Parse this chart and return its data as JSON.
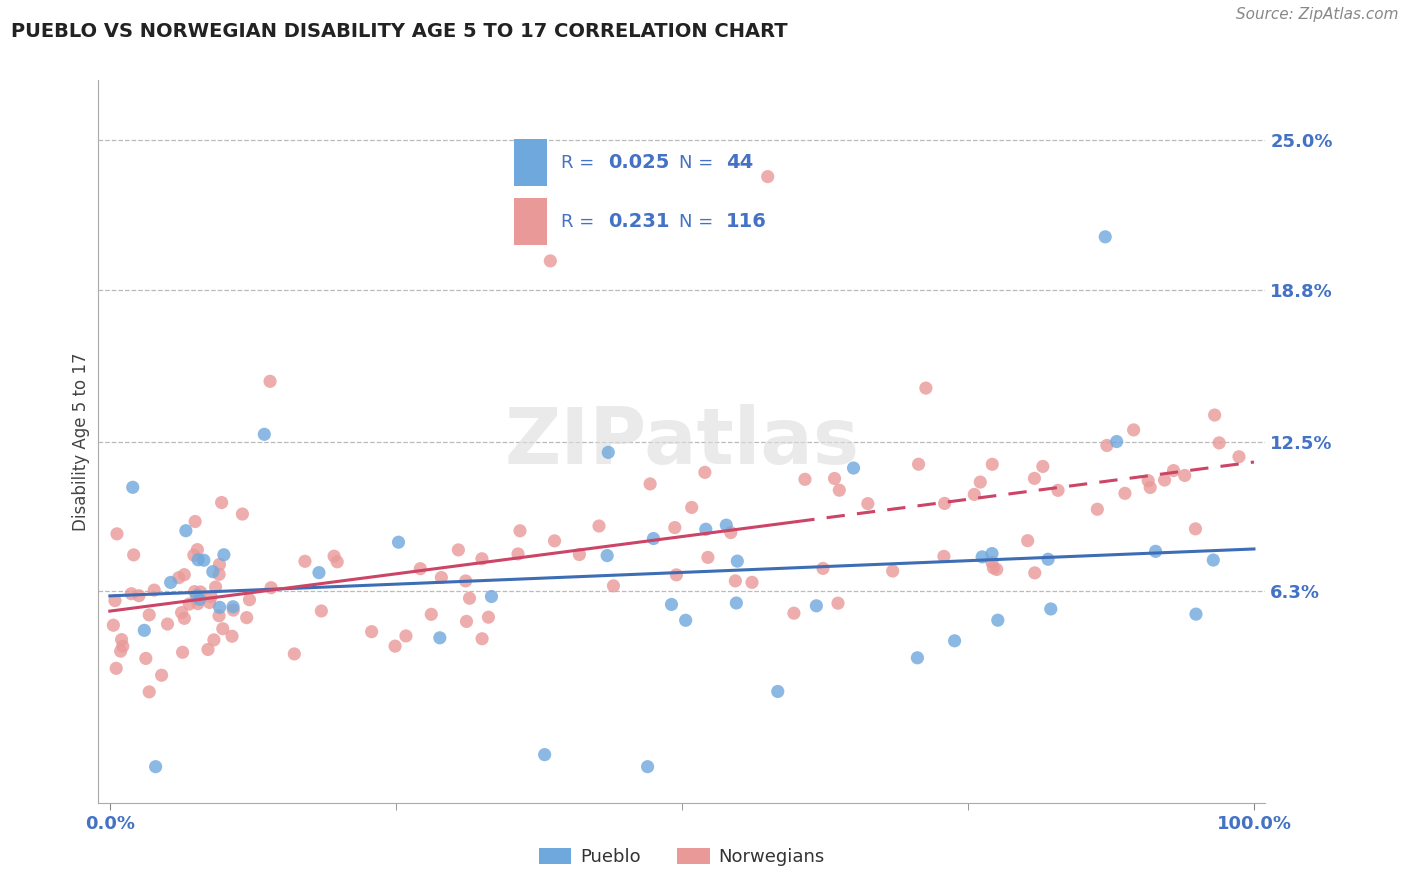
{
  "title": "PUEBLO VS NORWEGIAN DISABILITY AGE 5 TO 17 CORRELATION CHART",
  "source": "Source: ZipAtlas.com",
  "ylabel": "Disability Age 5 to 17",
  "pueblo_R": "0.025",
  "pueblo_N": "44",
  "norwegian_R": "0.231",
  "norwegian_N": "116",
  "pueblo_color": "#6fa8dc",
  "norwegian_color": "#ea9999",
  "line_pueblo_color": "#3d6db5",
  "line_norwegian_color": "#cc4466",
  "ytick_values": [
    0.063,
    0.125,
    0.188,
    0.25
  ],
  "ytick_labels": [
    "6.3%",
    "12.5%",
    "18.8%",
    "25.0%"
  ],
  "grid_color": "#bbbbbb",
  "tick_color": "#4472c4",
  "title_color": "#222222",
  "source_color": "#888888",
  "watermark_color": "#dddddd",
  "legend_edge_color": "#cccccc",
  "ylim_low": -0.025,
  "ylim_high": 0.275,
  "xlim_low": -0.01,
  "xlim_high": 1.01
}
